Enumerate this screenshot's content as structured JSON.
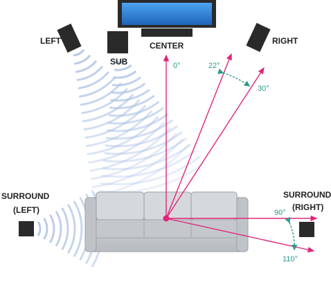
{
  "labels": {
    "left": "LEFT",
    "sub": "SUB",
    "center": "CENTER",
    "right": "RIGHT",
    "surround_left_1": "SURROUND",
    "surround_left_2": "(LEFT)",
    "surround_right_1": "SURROUND",
    "surround_right_2": "(RIGHT)"
  },
  "angles": {
    "a0": "0°",
    "a22": "22°",
    "a30": "30°",
    "a90": "90°",
    "a110": "110°"
  },
  "colors": {
    "ray": "#e0267a",
    "angle_text": "#2a9a8c",
    "wave": "#a9bfe2",
    "speaker": "#2a2a2a",
    "screen": "#2f7fd6",
    "sofa": "#c9ccd0"
  }
}
